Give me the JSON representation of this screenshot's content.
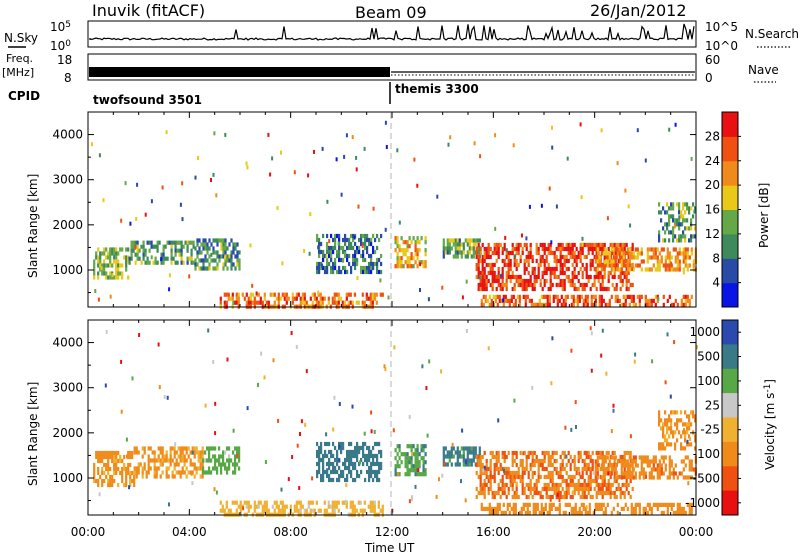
{
  "header": {
    "station": "Inuvik (fitACF)",
    "beam": "Beam 09",
    "date": "26/Jan/2012"
  },
  "noise_panel": {
    "left_label": "N.Sky",
    "right_label": "N.Search",
    "left_ticks": [
      "10^5",
      "10^0"
    ],
    "right_ticks": [
      "10^5",
      "10^0"
    ],
    "left_ticks_display": [
      "10",
      "10"
    ],
    "left_tick_exponents": [
      "5",
      "0"
    ]
  },
  "freq_panel": {
    "left_label_1": "Freq.",
    "left_label_2": "[MHz]",
    "right_label": "Nave",
    "left_ticks": [
      "18",
      "8"
    ],
    "right_ticks": [
      "60",
      "0"
    ]
  },
  "cpid_panel": {
    "label": "CPID",
    "segments": [
      "twofsound 3501",
      "themis 3300"
    ]
  },
  "x_axis": {
    "label": "Time UT",
    "ticks": [
      "00:00",
      "04:00",
      "08:00",
      "12:00",
      "16:00",
      "20:00",
      "00:00"
    ]
  },
  "colors": {
    "power": [
      "#0a14e6",
      "#2a4aa8",
      "#3e8a5a",
      "#64a848",
      "#e8c818",
      "#f08a1a",
      "#f05010",
      "#e81010"
    ],
    "velocity": [
      "#2a4ab0",
      "#3a7a88",
      "#58a848",
      "#c8c8c8",
      "#f0b030",
      "#f08a1a",
      "#f05010",
      "#e81010"
    ],
    "dashed_line": "#c0c0c0"
  },
  "chart_data": [
    {
      "type": "heatmap",
      "title": "",
      "ylabel": "Slant Range [km]",
      "xlabel": "",
      "ylim": [
        180,
        4500
      ],
      "y_ticks": [
        "1000",
        "2000",
        "3000",
        "4000"
      ],
      "colorbar": {
        "label": "Power [dB]",
        "tick_labels": [
          "4",
          "8",
          "12",
          "16",
          "20",
          "24",
          "28"
        ],
        "range": [
          0,
          32
        ]
      },
      "x_range_hours": [
        0,
        24
      ],
      "regions": [
        {
          "x": [
            0.2,
            1.6
          ],
          "y": [
            850,
            1500
          ],
          "value": 14
        },
        {
          "x": [
            1.6,
            4.2
          ],
          "y": [
            1200,
            1650
          ],
          "value": 12
        },
        {
          "x": [
            4.2,
            6.0
          ],
          "y": [
            1050,
            1700
          ],
          "value": 11
        },
        {
          "x": [
            5.2,
            11.6
          ],
          "y": [
            200,
            500
          ],
          "value": 24
        },
        {
          "x": [
            9.0,
            11.6
          ],
          "y": [
            1000,
            1800
          ],
          "value": 9
        },
        {
          "x": [
            12.1,
            13.3
          ],
          "y": [
            1050,
            1750
          ],
          "value": 20
        },
        {
          "x": [
            14.0,
            15.5
          ],
          "y": [
            1300,
            1700
          ],
          "value": 13
        },
        {
          "x": [
            15.3,
            21.5
          ],
          "y": [
            600,
            1600
          ],
          "value": 28
        },
        {
          "x": [
            15.5,
            23.8
          ],
          "y": [
            200,
            450
          ],
          "value": 25
        },
        {
          "x": [
            20.0,
            24.0
          ],
          "y": [
            1000,
            1500
          ],
          "value": 22
        },
        {
          "x": [
            22.5,
            24.0
          ],
          "y": [
            1700,
            2500
          ],
          "value": 12
        }
      ]
    },
    {
      "type": "heatmap",
      "title": "",
      "ylabel": "Slant Range [km]",
      "xlabel": "Time UT",
      "ylim": [
        180,
        4500
      ],
      "y_ticks": [
        "1000",
        "2000",
        "3000",
        "4000"
      ],
      "colorbar": {
        "label": "Velocity [m s-1]",
        "tick_labels": [
          "1000",
          "500",
          "100",
          "25",
          "-25",
          "-100",
          "-500",
          "-1000"
        ],
        "range": [
          -1000,
          1000
        ]
      },
      "x_range_hours": [
        0,
        24
      ],
      "regions": [
        {
          "x": [
            0.2,
            1.8
          ],
          "y": [
            850,
            1600
          ],
          "value": -150
        },
        {
          "x": [
            1.8,
            4.5
          ],
          "y": [
            1000,
            1700
          ],
          "value": -120
        },
        {
          "x": [
            4.5,
            6.0
          ],
          "y": [
            1100,
            1700
          ],
          "value": 60
        },
        {
          "x": [
            5.2,
            11.6
          ],
          "y": [
            200,
            500
          ],
          "value": -60
        },
        {
          "x": [
            9.0,
            11.6
          ],
          "y": [
            1000,
            1800
          ],
          "value": 200
        },
        {
          "x": [
            12.1,
            13.3
          ],
          "y": [
            1050,
            1750
          ],
          "value": 80
        },
        {
          "x": [
            14.0,
            15.5
          ],
          "y": [
            1300,
            1700
          ],
          "value": 150
        },
        {
          "x": [
            15.3,
            21.5
          ],
          "y": [
            600,
            1600
          ],
          "value": -450
        },
        {
          "x": [
            15.5,
            23.8
          ],
          "y": [
            200,
            450
          ],
          "value": -300
        },
        {
          "x": [
            20.0,
            24.0
          ],
          "y": [
            1000,
            1500
          ],
          "value": -350
        },
        {
          "x": [
            22.5,
            24.0
          ],
          "y": [
            1700,
            2500
          ],
          "value": -150
        }
      ]
    }
  ]
}
